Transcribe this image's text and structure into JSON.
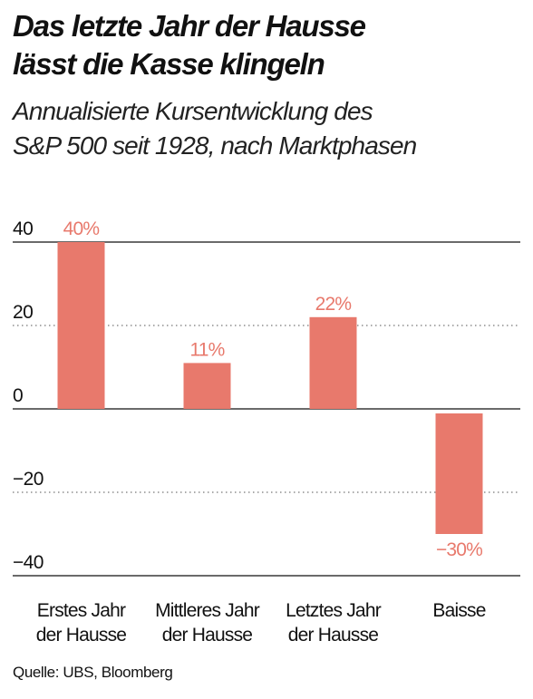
{
  "header": {
    "title_line1": "Das letzte Jahr der Hausse",
    "title_line2": "lässt die Kasse klingeln",
    "subtitle_line1": "Annualisierte Kursentwicklung des",
    "subtitle_line2": "S&P 500 seit 1928, nach Marktphasen"
  },
  "footer": {
    "source": "Quelle: UBS, Bloomberg"
  },
  "colors": {
    "bar": "#e8796c",
    "label": "#e8796c",
    "axis": "#111111",
    "grid": "#555555"
  },
  "chart_data": {
    "type": "bar",
    "categories": [
      [
        "Erstes Jahr",
        "der Hausse"
      ],
      [
        "Mittleres Jahr",
        "der Hausse"
      ],
      [
        "Letztes Jahr",
        "der Hausse"
      ],
      [
        "Baisse"
      ]
    ],
    "values": [
      40,
      11,
      22,
      -30
    ],
    "data_labels": [
      "40%",
      "11%",
      "22%",
      "−30%"
    ],
    "yticks": [
      40,
      20,
      0,
      -20,
      -40
    ],
    "ytick_labels": [
      "40",
      "20",
      "0",
      "−20",
      "−40"
    ],
    "ylim": [
      -40,
      40
    ],
    "title": "",
    "xlabel": "",
    "ylabel": "",
    "grid": "dotted at 20 and -20, solid at 40, 0 and -40",
    "legend": "none"
  }
}
